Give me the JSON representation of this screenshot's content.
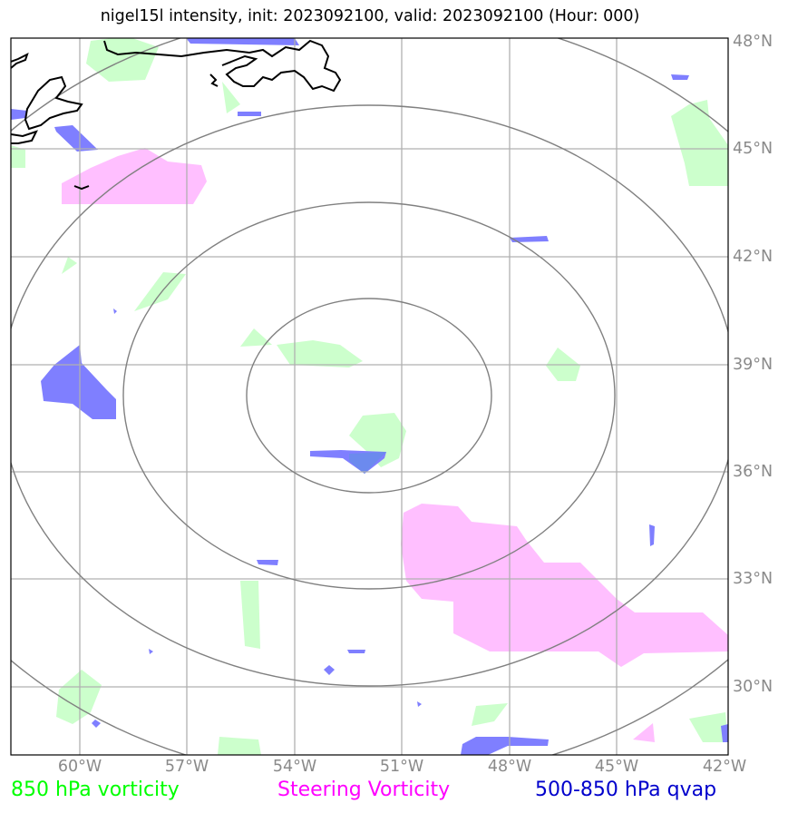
{
  "title": "nigel15l intensity, init: 2023092100, valid: 2023092100 (Hour: 000)",
  "map": {
    "projection": "lat-lon",
    "lon_range": [
      "62°W",
      "42°W"
    ],
    "lat_range": [
      "28°N",
      "48°N"
    ],
    "grid": true,
    "longitude_labels": [
      "60°W",
      "57°W",
      "54°W",
      "51°W",
      "48°W",
      "45°W",
      "42°W"
    ],
    "latitude_labels": [
      "48°N",
      "45°N",
      "42°N",
      "39°N",
      "36°N",
      "33°N",
      "30°N"
    ],
    "storm_center": {
      "lon": -52.0,
      "lat": 38.3
    },
    "range_rings": 4
  },
  "colors": {
    "vorticity_850": "#ccffcc",
    "steering_vorticity": "#ffbfff",
    "qvap": "#7f7fff",
    "overlap": "#6c8aee",
    "coastline": "#000000",
    "rings": "#808080",
    "grid": "#b0b0b0"
  },
  "legend": [
    {
      "label": "850 hPa vorticity",
      "color": "#00ff00"
    },
    {
      "label": "Steering Vorticity",
      "color": "#ff00ff"
    },
    {
      "label": "500-850 hPa qvap",
      "color": "#0000cc"
    }
  ]
}
